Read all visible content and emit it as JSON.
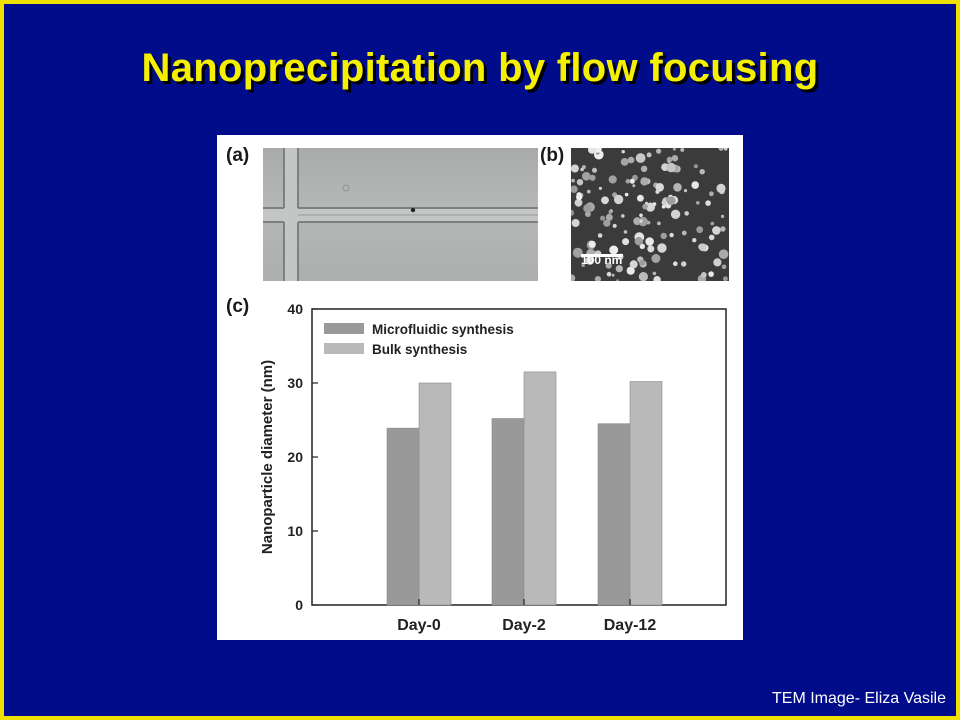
{
  "slide": {
    "title": "Nanoprecipitation by flow focusing",
    "credit": "TEM Image- Eliza Vasile",
    "colors": {
      "background": "#000c8a",
      "border": "#f0e000",
      "title": "#f5f000",
      "credit": "#ffffff"
    }
  },
  "figure": {
    "panel_a_label": "(a)",
    "panel_b_label": "(b)",
    "panel_c_label": "(c)",
    "scale_bar_label": "100 nm"
  },
  "chart_data": {
    "type": "bar",
    "categories": [
      "Day-0",
      "Day-2",
      "Day-12"
    ],
    "series": [
      {
        "name": "Microfluidic synthesis",
        "values": [
          23.9,
          25.2,
          24.5
        ],
        "color": "#999999"
      },
      {
        "name": "Bulk synthesis",
        "values": [
          30.0,
          31.5,
          30.2
        ],
        "color": "#b9b9b9"
      }
    ],
    "title": "",
    "xlabel": "",
    "ylabel": "Nanoparticle diameter (nm)",
    "ylim": [
      0,
      40
    ],
    "yticks": [
      0,
      10,
      20,
      30,
      40
    ],
    "grid": false,
    "legend_position": "top-left"
  }
}
